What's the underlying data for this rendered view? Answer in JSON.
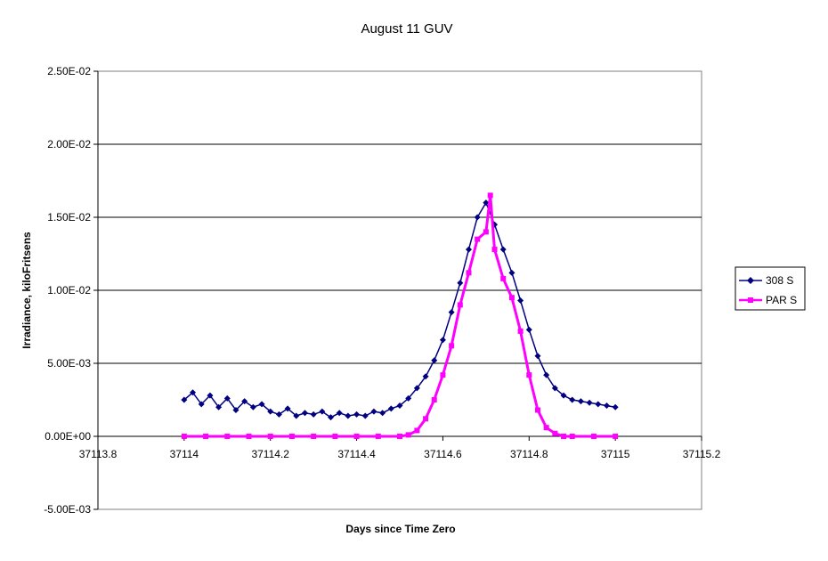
{
  "chart_data": {
    "type": "line",
    "title": "August 11 GUV",
    "xlabel": "Days since Time Zero",
    "ylabel": "Irradiance, kiloFritsens",
    "xlim": [
      37113.8,
      37115.2
    ],
    "ylim": [
      -0.005,
      0.025
    ],
    "x_ticks": [
      37113.8,
      37114,
      37114.2,
      37114.4,
      37114.6,
      37114.8,
      37115,
      37115.2
    ],
    "x_tick_labels": [
      "37113.8",
      "37114",
      "37114.2",
      "37114.4",
      "37114.6",
      "37114.8",
      "37115",
      "37115.2"
    ],
    "y_ticks": [
      -0.005,
      0,
      0.005,
      0.01,
      0.015,
      0.02,
      0.025
    ],
    "y_tick_labels": [
      "-5.00E-03",
      "0.00E+00",
      "5.00E-03",
      "1.00E-02",
      "1.50E-02",
      "2.00E-02",
      "2.50E-02"
    ],
    "grid": "horizontal",
    "legend": "right",
    "series": [
      {
        "name": "308 S",
        "color": "#000080",
        "marker": "diamond",
        "x": [
          37114,
          37114.02,
          37114.04,
          37114.06,
          37114.08,
          37114.1,
          37114.12,
          37114.14,
          37114.16,
          37114.18,
          37114.2,
          37114.22,
          37114.24,
          37114.26,
          37114.28,
          37114.3,
          37114.32,
          37114.34,
          37114.36,
          37114.38,
          37114.4,
          37114.42,
          37114.44,
          37114.46,
          37114.48,
          37114.5,
          37114.52,
          37114.54,
          37114.56,
          37114.58,
          37114.6,
          37114.62,
          37114.64,
          37114.66,
          37114.68,
          37114.7,
          37114.72,
          37114.74,
          37114.76,
          37114.78,
          37114.8,
          37114.82,
          37114.84,
          37114.86,
          37114.88,
          37114.9,
          37114.92,
          37114.94,
          37114.96,
          37114.98,
          37115
        ],
        "values": [
          0.0025,
          0.003,
          0.0022,
          0.0028,
          0.002,
          0.0026,
          0.0018,
          0.0024,
          0.002,
          0.0022,
          0.0017,
          0.0015,
          0.0019,
          0.0014,
          0.0016,
          0.0015,
          0.0017,
          0.0013,
          0.0016,
          0.0014,
          0.0015,
          0.0014,
          0.0017,
          0.0016,
          0.0019,
          0.0021,
          0.0026,
          0.0033,
          0.0041,
          0.0052,
          0.0066,
          0.0085,
          0.0105,
          0.0128,
          0.015,
          0.016,
          0.0145,
          0.0128,
          0.0112,
          0.0093,
          0.0073,
          0.0055,
          0.0042,
          0.0033,
          0.0028,
          0.0025,
          0.0024,
          0.0023,
          0.0022,
          0.0021,
          0.002
        ]
      },
      {
        "name": "PAR S",
        "color": "#ff00ff",
        "marker": "square",
        "x": [
          37114,
          37114.05,
          37114.1,
          37114.15,
          37114.2,
          37114.25,
          37114.3,
          37114.35,
          37114.4,
          37114.45,
          37114.5,
          37114.52,
          37114.54,
          37114.56,
          37114.58,
          37114.6,
          37114.62,
          37114.64,
          37114.66,
          37114.68,
          37114.7,
          37114.71,
          37114.72,
          37114.74,
          37114.76,
          37114.78,
          37114.8,
          37114.82,
          37114.84,
          37114.86,
          37114.88,
          37114.9,
          37114.95,
          37115
        ],
        "values": [
          0,
          0,
          0,
          0,
          0,
          0,
          0,
          0,
          0,
          0,
          0,
          0.0001,
          0.0004,
          0.0012,
          0.0025,
          0.0042,
          0.0062,
          0.009,
          0.0112,
          0.0135,
          0.014,
          0.0165,
          0.0128,
          0.0108,
          0.0095,
          0.0072,
          0.0042,
          0.0018,
          0.0006,
          0.0002,
          0,
          0,
          0,
          0
        ]
      }
    ]
  }
}
